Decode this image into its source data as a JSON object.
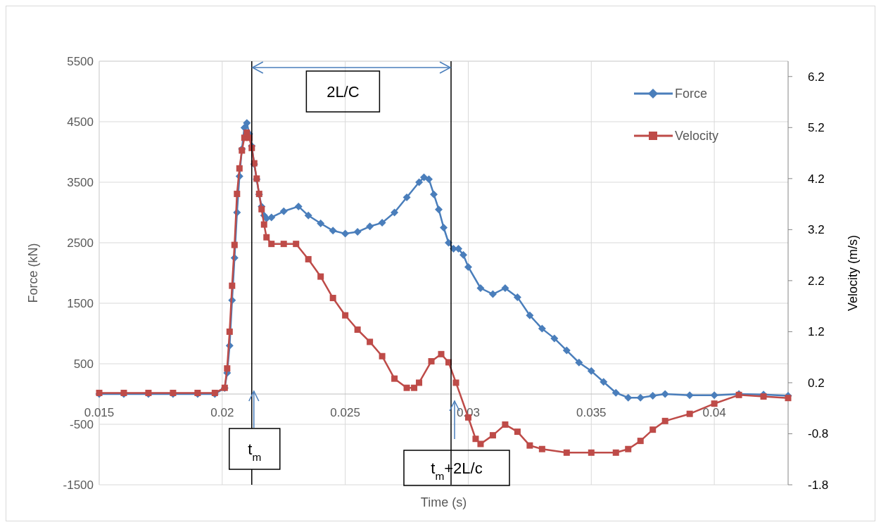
{
  "chart_data": {
    "type": "line",
    "xlabel": "Time (s)",
    "ylabel": "Force (kN)",
    "y2label": "Velocity (m/s)",
    "xlim": [
      0.015,
      0.043
    ],
    "xticks": [
      0.015,
      0.02,
      0.025,
      0.03,
      0.035,
      0.04
    ],
    "ylim": [
      -1500,
      5500
    ],
    "yticks": [
      -1500,
      -500,
      500,
      1500,
      2500,
      3500,
      4500,
      5500
    ],
    "y2lim": [
      -1.8,
      6.5
    ],
    "y2ticks": [
      -1.8,
      -0.8,
      0.2,
      1.2,
      2.2,
      3.2,
      4.2,
      5.2,
      6.2
    ],
    "grid": true,
    "legend": "top right",
    "line_style": "solid",
    "ref_lines": [
      {
        "axis": "x",
        "value": 0.0212,
        "color": "#000000"
      },
      {
        "axis": "x",
        "value": 0.0293,
        "color": "#000000"
      }
    ],
    "annotations": [
      "2L/C",
      {
        "text": "t$_{m}$",
        "x": 0.0212,
        "y": 0
      },
      "t$_{m}$+2L/c"
    ],
    "series": [
      {
        "name": "Force",
        "color": "#4a7ebb",
        "marker": "diamond",
        "x": [
          0.015,
          0.016,
          0.017,
          0.018,
          0.019,
          0.0197,
          0.0201,
          0.0202,
          0.0203,
          0.0204,
          0.0205,
          0.0206,
          0.0207,
          0.0208,
          0.0209,
          0.021,
          0.0211,
          0.0212,
          0.0213,
          0.0214,
          0.0215,
          0.0216,
          0.0217,
          0.0218,
          0.022,
          0.0225,
          0.0231,
          0.0235,
          0.024,
          0.0245,
          0.025,
          0.0255,
          0.026,
          0.0265,
          0.027,
          0.0275,
          0.028,
          0.0282,
          0.0284,
          0.0286,
          0.0288,
          0.029,
          0.0292,
          0.0294,
          0.0296,
          0.0298,
          0.03,
          0.0305,
          0.031,
          0.0315,
          0.032,
          0.0325,
          0.033,
          0.0335,
          0.034,
          0.0345,
          0.035,
          0.0355,
          0.036,
          0.0365,
          0.037,
          0.0375,
          0.038,
          0.039,
          0.04,
          0.041,
          0.042,
          0.043
        ],
        "values": [
          0,
          0,
          0,
          0,
          0,
          0,
          100,
          350,
          800,
          1550,
          2250,
          3000,
          3600,
          4050,
          4400,
          4480,
          4300,
          4100,
          3800,
          3550,
          3300,
          3100,
          2950,
          2900,
          2920,
          3020,
          3100,
          2950,
          2820,
          2700,
          2650,
          2680,
          2770,
          2830,
          3000,
          3250,
          3500,
          3580,
          3550,
          3300,
          3050,
          2750,
          2500,
          2400,
          2400,
          2300,
          2100,
          1750,
          1650,
          1750,
          1600,
          1300,
          1080,
          920,
          720,
          520,
          380,
          200,
          20,
          -60,
          -60,
          -30,
          0,
          -20,
          -20,
          0,
          -10,
          -30
        ]
      },
      {
        "name": "Velocity",
        "color": "#be4b48",
        "marker": "square",
        "axis": "y2",
        "x": [
          0.015,
          0.016,
          0.017,
          0.018,
          0.019,
          0.0197,
          0.0201,
          0.0202,
          0.0203,
          0.0204,
          0.0205,
          0.0206,
          0.0207,
          0.0208,
          0.0209,
          0.021,
          0.0211,
          0.0212,
          0.0213,
          0.0214,
          0.0215,
          0.0216,
          0.0217,
          0.0218,
          0.022,
          0.0225,
          0.023,
          0.0235,
          0.024,
          0.0245,
          0.025,
          0.0255,
          0.026,
          0.0265,
          0.027,
          0.0275,
          0.0278,
          0.028,
          0.0285,
          0.0289,
          0.0292,
          0.0295,
          0.03,
          0.0303,
          0.0305,
          0.031,
          0.0315,
          0.032,
          0.0325,
          0.033,
          0.034,
          0.035,
          0.036,
          0.0365,
          0.037,
          0.0375,
          0.038,
          0.039,
          0.04,
          0.041,
          0.042,
          0.043
        ],
        "values": [
          0,
          0,
          0,
          0,
          0,
          0,
          0.1,
          0.48,
          1.2,
          2.1,
          2.9,
          3.9,
          4.4,
          4.75,
          5.0,
          5.1,
          5.0,
          4.8,
          4.5,
          4.2,
          3.9,
          3.6,
          3.3,
          3.05,
          2.92,
          2.92,
          2.92,
          2.62,
          2.28,
          1.86,
          1.52,
          1.24,
          1.0,
          0.72,
          0.28,
          0.1,
          0.1,
          0.2,
          0.62,
          0.76,
          0.6,
          0.2,
          -0.48,
          -0.9,
          -1.0,
          -0.83,
          -0.62,
          -0.76,
          -1.03,
          -1.1,
          -1.17,
          -1.17,
          -1.17,
          -1.1,
          -0.94,
          -0.72,
          -0.55,
          -0.41,
          -0.21,
          -0.04,
          -0.07,
          -0.1
        ]
      }
    ]
  }
}
